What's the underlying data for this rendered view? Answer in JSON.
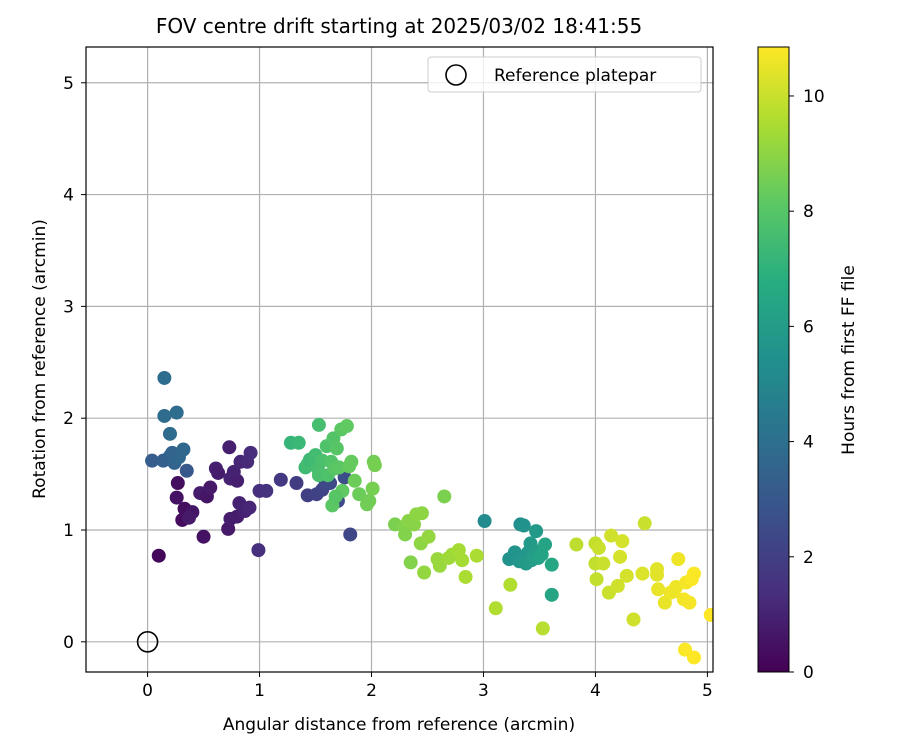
{
  "chart_data": {
    "type": "scatter",
    "title": "FOV centre drift starting at 2025/03/02 18:41:55",
    "xlabel": "Angular distance from reference (arcmin)",
    "ylabel": "Rotation from reference (arcmin)",
    "xlim": [
      -0.55,
      5.05
    ],
    "ylim": [
      -0.27,
      5.32
    ],
    "x_ticks": [
      0,
      1,
      2,
      3,
      4,
      5
    ],
    "y_ticks": [
      0,
      1,
      2,
      3,
      4,
      5
    ],
    "grid": true,
    "legend": {
      "placement": "top-right",
      "entries": [
        "Reference platepar"
      ]
    },
    "reference_point": {
      "x": 0,
      "y": 0
    },
    "colorbar": {
      "label": "Hours from first FF file",
      "colormap": "viridis",
      "range": [
        0,
        10.85
      ],
      "ticks": [
        0,
        2,
        4,
        6,
        8,
        10
      ]
    },
    "points": [
      [
        0.1,
        0.77,
        0.2
      ],
      [
        0.27,
        1.42,
        0.4
      ],
      [
        0.26,
        1.29,
        0.5
      ],
      [
        0.33,
        1.19,
        0.4
      ],
      [
        0.31,
        1.09,
        0.3
      ],
      [
        0.4,
        1.16,
        0.6
      ],
      [
        0.37,
        1.11,
        0.7
      ],
      [
        0.5,
        0.94,
        0.5
      ],
      [
        0.47,
        1.33,
        0.8
      ],
      [
        0.53,
        1.3,
        0.6
      ],
      [
        0.56,
        1.38,
        0.7
      ],
      [
        0.61,
        1.55,
        0.9
      ],
      [
        0.63,
        1.51,
        0.8
      ],
      [
        0.73,
        1.74,
        0.9
      ],
      [
        0.74,
        1.46,
        1.0
      ],
      [
        0.77,
        1.52,
        1.0
      ],
      [
        0.8,
        1.44,
        0.9
      ],
      [
        0.83,
        1.61,
        1.1
      ],
      [
        0.89,
        1.61,
        1.2
      ],
      [
        0.92,
        1.69,
        1.3
      ],
      [
        0.72,
        1.01,
        0.7
      ],
      [
        0.74,
        1.1,
        0.8
      ],
      [
        0.8,
        1.12,
        0.8
      ],
      [
        0.82,
        1.24,
        1.0
      ],
      [
        0.87,
        1.17,
        1.0
      ],
      [
        0.91,
        1.2,
        1.1
      ],
      [
        1.0,
        1.35,
        1.4
      ],
      [
        1.06,
        1.35,
        1.5
      ],
      [
        0.99,
        0.82,
        1.4
      ],
      [
        1.19,
        1.45,
        1.7
      ],
      [
        1.33,
        1.42,
        1.9
      ],
      [
        1.43,
        1.31,
        2.0
      ],
      [
        1.51,
        1.32,
        2.1
      ],
      [
        1.56,
        1.36,
        2.2
      ],
      [
        1.59,
        1.41,
        2.3
      ],
      [
        1.63,
        1.42,
        2.4
      ],
      [
        1.7,
        1.26,
        2.5
      ],
      [
        1.76,
        1.47,
        2.6
      ],
      [
        1.81,
        0.96,
        2.3
      ],
      [
        0.04,
        1.62,
        3.2
      ],
      [
        0.14,
        1.62,
        3.3
      ],
      [
        0.2,
        1.66,
        3.4
      ],
      [
        0.22,
        1.69,
        3.5
      ],
      [
        0.24,
        1.6,
        3.5
      ],
      [
        0.28,
        1.65,
        3.6
      ],
      [
        0.32,
        1.72,
        3.7
      ],
      [
        0.35,
        1.53,
        3.0
      ],
      [
        0.15,
        2.02,
        3.8
      ],
      [
        0.15,
        2.36,
        3.9
      ],
      [
        0.2,
        1.86,
        3.8
      ],
      [
        0.26,
        2.05,
        3.9
      ],
      [
        3.01,
        1.08,
        5.2
      ],
      [
        3.23,
        0.74,
        5.5
      ],
      [
        3.28,
        0.8,
        5.6
      ],
      [
        3.32,
        0.72,
        5.7
      ],
      [
        3.33,
        1.05,
        5.4
      ],
      [
        3.36,
        1.04,
        5.5
      ],
      [
        3.37,
        0.75,
        5.8
      ],
      [
        3.38,
        0.7,
        5.9
      ],
      [
        3.4,
        0.8,
        5.8
      ],
      [
        3.42,
        0.88,
        5.9
      ],
      [
        3.43,
        0.73,
        6.0
      ],
      [
        3.45,
        0.77,
        6.1
      ],
      [
        3.47,
        0.81,
        6.0
      ],
      [
        3.47,
        0.99,
        5.9
      ],
      [
        3.49,
        0.75,
        6.2
      ],
      [
        3.52,
        0.78,
        6.3
      ],
      [
        3.55,
        0.87,
        6.3
      ],
      [
        3.61,
        0.69,
        6.5
      ],
      [
        3.61,
        0.42,
        6.4
      ],
      [
        1.28,
        1.78,
        7.2
      ],
      [
        1.35,
        1.78,
        7.3
      ],
      [
        1.41,
        1.56,
        7.4
      ],
      [
        1.43,
        1.59,
        7.5
      ],
      [
        1.45,
        1.63,
        7.4
      ],
      [
        1.5,
        1.67,
        7.5
      ],
      [
        1.52,
        1.55,
        7.6
      ],
      [
        1.53,
        1.49,
        7.7
      ],
      [
        1.53,
        1.94,
        7.6
      ],
      [
        1.56,
        1.62,
        7.7
      ],
      [
        1.6,
        1.75,
        7.8
      ],
      [
        1.61,
        1.49,
        7.8
      ],
      [
        1.64,
        1.61,
        7.9
      ],
      [
        1.66,
        1.82,
        7.9
      ],
      [
        1.67,
        1.55,
        8.0
      ],
      [
        1.69,
        1.73,
        8.0
      ],
      [
        1.71,
        1.56,
        8.1
      ],
      [
        1.73,
        1.9,
        8.1
      ],
      [
        1.74,
        1.35,
        8.2
      ],
      [
        1.78,
        1.93,
        8.2
      ],
      [
        1.8,
        1.57,
        8.3
      ],
      [
        1.82,
        1.61,
        8.3
      ],
      [
        1.85,
        1.44,
        8.4
      ],
      [
        1.89,
        1.32,
        8.4
      ],
      [
        1.96,
        1.23,
        8.5
      ],
      [
        1.98,
        1.26,
        8.5
      ],
      [
        2.01,
        1.37,
        8.6
      ],
      [
        2.02,
        1.61,
        8.5
      ],
      [
        2.03,
        1.58,
        8.6
      ],
      [
        1.65,
        1.22,
        8.1
      ],
      [
        1.68,
        1.3,
        8.0
      ],
      [
        2.21,
        1.05,
        8.7
      ],
      [
        2.29,
        1.03,
        8.8
      ],
      [
        2.3,
        0.96,
        8.8
      ],
      [
        2.33,
        1.08,
        8.9
      ],
      [
        2.35,
        0.71,
        8.8
      ],
      [
        2.38,
        1.05,
        8.9
      ],
      [
        2.4,
        1.14,
        9.0
      ],
      [
        2.45,
        1.15,
        9.0
      ],
      [
        2.44,
        0.88,
        9.0
      ],
      [
        2.47,
        0.62,
        9.1
      ],
      [
        2.51,
        0.94,
        9.1
      ],
      [
        2.59,
        0.74,
        9.2
      ],
      [
        2.61,
        0.68,
        9.2
      ],
      [
        2.65,
        1.3,
        8.7
      ],
      [
        2.69,
        0.75,
        9.3
      ],
      [
        2.72,
        0.78,
        9.3
      ],
      [
        2.78,
        0.82,
        9.4
      ],
      [
        2.81,
        0.73,
        9.4
      ],
      [
        2.84,
        0.58,
        9.5
      ],
      [
        2.94,
        0.77,
        9.5
      ],
      [
        3.11,
        0.3,
        9.6
      ],
      [
        3.24,
        0.51,
        9.6
      ],
      [
        3.53,
        0.12,
        9.7
      ],
      [
        3.83,
        0.87,
        9.8
      ],
      [
        4.0,
        0.88,
        9.9
      ],
      [
        4.0,
        0.7,
        9.9
      ],
      [
        4.01,
        0.56,
        9.9
      ],
      [
        4.03,
        0.84,
        10.0
      ],
      [
        4.07,
        0.7,
        10.0
      ],
      [
        4.12,
        0.44,
        10.0
      ],
      [
        4.14,
        0.95,
        10.1
      ],
      [
        4.2,
        0.5,
        10.1
      ],
      [
        4.22,
        0.76,
        10.2
      ],
      [
        4.24,
        0.9,
        10.2
      ],
      [
        4.28,
        0.59,
        10.2
      ],
      [
        4.34,
        0.2,
        10.1
      ],
      [
        4.42,
        0.61,
        10.3
      ],
      [
        4.44,
        1.06,
        10.0
      ],
      [
        4.55,
        0.65,
        10.4
      ],
      [
        4.55,
        0.6,
        10.4
      ],
      [
        4.56,
        0.47,
        10.5
      ],
      [
        4.62,
        0.35,
        10.5
      ],
      [
        4.67,
        0.44,
        10.6
      ],
      [
        4.7,
        0.45,
        10.6
      ],
      [
        4.72,
        0.49,
        10.6
      ],
      [
        4.74,
        0.74,
        10.6
      ],
      [
        4.79,
        0.38,
        10.7
      ],
      [
        4.84,
        0.35,
        10.7
      ],
      [
        4.81,
        0.53,
        10.7
      ],
      [
        4.86,
        0.56,
        10.8
      ],
      [
        4.88,
        0.61,
        10.8
      ],
      [
        4.8,
        -0.07,
        10.8
      ],
      [
        4.88,
        -0.14,
        10.85
      ],
      [
        5.03,
        0.24,
        10.85
      ]
    ]
  }
}
